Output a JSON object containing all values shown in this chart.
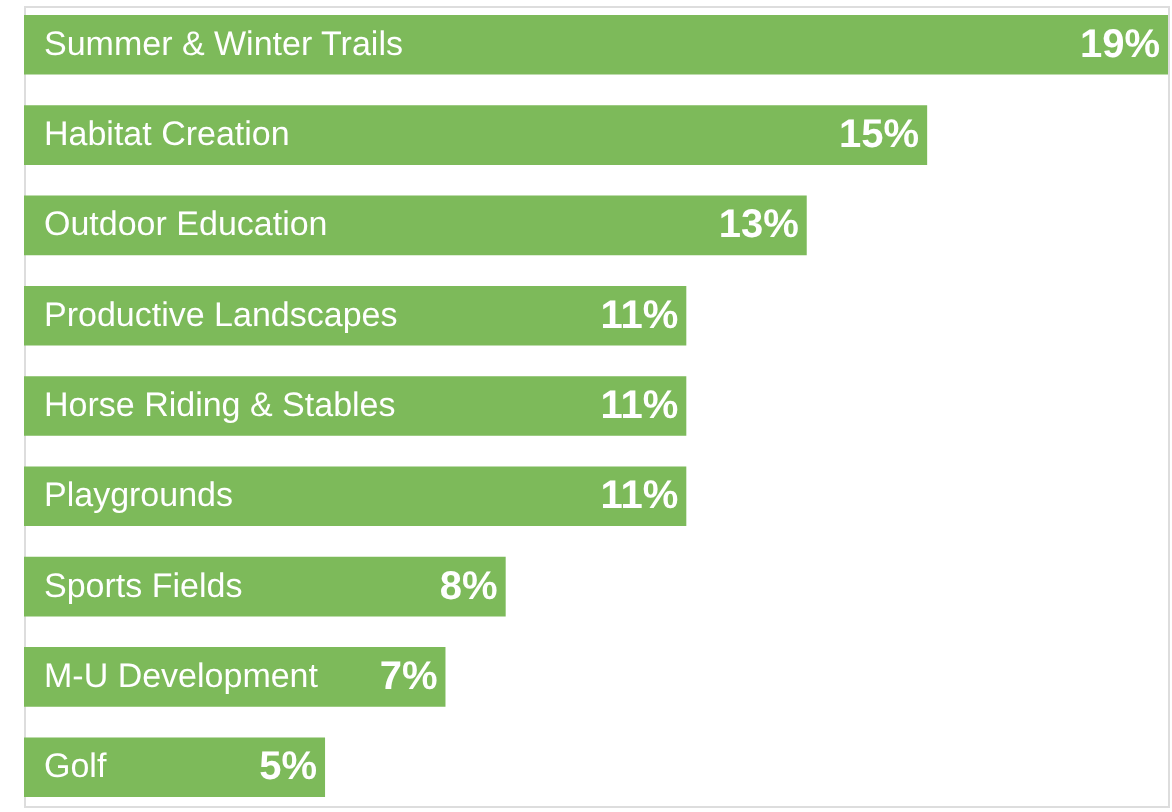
{
  "chart_data": {
    "type": "bar",
    "orientation": "horizontal",
    "categories": [
      "Summer & Winter Trails",
      "Habitat Creation",
      "Outdoor Education",
      "Productive Landscapes",
      "Horse Riding & Stables",
      "Playgrounds",
      "Sports Fields",
      "M-U Development",
      "Golf"
    ],
    "values": [
      19,
      15,
      13,
      11,
      11,
      11,
      8,
      7,
      5
    ],
    "value_labels": [
      "19%",
      "15%",
      "13%",
      "11%",
      "11%",
      "11%",
      "8%",
      "7%",
      "5%"
    ],
    "color": "#7dba5a"
  }
}
